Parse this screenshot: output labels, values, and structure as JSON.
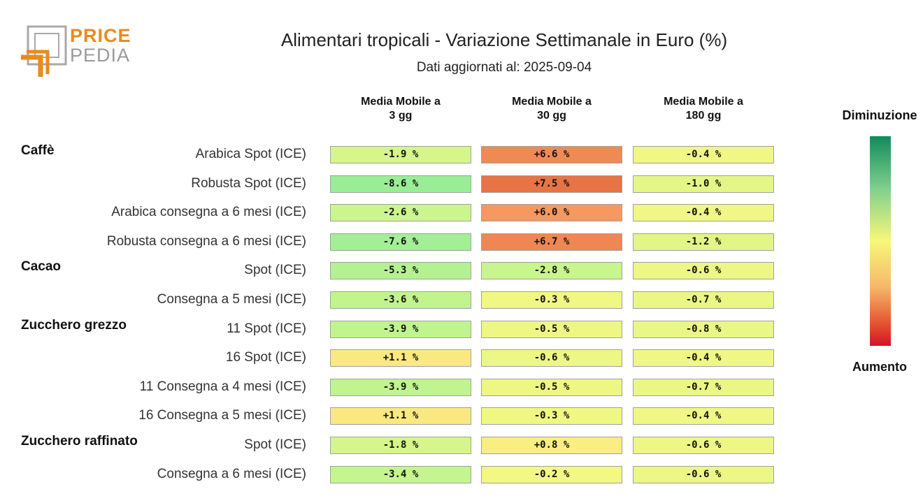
{
  "brand": {
    "logo_line1": "PRICE",
    "logo_line2": "PEDIA"
  },
  "title": "Alimentari tropicali - Variazione Settimanale in Euro (%)",
  "subtitle": "Dati aggiornati al: 2025-09-04",
  "legend": {
    "top_label": "Diminuzione",
    "bottom_label": "Aumento"
  },
  "colors": {
    "brand_orange": "#ea8a1e",
    "brand_gray": "#9a9a9a",
    "scale_green": "#128a5c",
    "scale_yellow": "#f7f77a",
    "scale_red": "#d4122a"
  },
  "chart_data": {
    "type": "heatmap",
    "title": "Alimentari tropicali - Variazione Settimanale in Euro (%)",
    "columns": [
      "Media Mobile a\n3 gg",
      "Media Mobile a\n30 gg",
      "Media Mobile a\n180 gg"
    ],
    "groups": [
      {
        "name": "Caffè",
        "rows": [
          {
            "label": "Arabica Spot (ICE)",
            "values": [
              "-1.9 %",
              "+6.6 %",
              "-0.4 %"
            ]
          },
          {
            "label": "Robusta Spot (ICE)",
            "values": [
              "-8.6 %",
              "+7.5 %",
              "-1.0 %"
            ]
          },
          {
            "label": "Arabica consegna a 6 mesi (ICE)",
            "values": [
              "-2.6 %",
              "+6.0 %",
              "-0.4 %"
            ]
          },
          {
            "label": "Robusta consegna a 6 mesi (ICE)",
            "values": [
              "-7.6 %",
              "+6.7 %",
              "-1.2 %"
            ]
          }
        ]
      },
      {
        "name": "Cacao",
        "rows": [
          {
            "label": "Spot (ICE)",
            "values": [
              "-5.3 %",
              "-2.8 %",
              "-0.6 %"
            ]
          },
          {
            "label": "Consegna a 5 mesi (ICE)",
            "values": [
              "-3.6 %",
              "-0.3 %",
              "-0.7 %"
            ]
          }
        ]
      },
      {
        "name": "Zucchero grezzo",
        "rows": [
          {
            "label": "11 Spot (ICE)",
            "values": [
              "-3.9 %",
              "-0.5 %",
              "-0.8 %"
            ]
          },
          {
            "label": "16 Spot (ICE)",
            "values": [
              "+1.1 %",
              "-0.6 %",
              "-0.4 %"
            ]
          },
          {
            "label": "11 Consegna a 4 mesi (ICE)",
            "values": [
              "-3.9 %",
              "-0.5 %",
              "-0.7 %"
            ]
          },
          {
            "label": "16 Consegna a 5 mesi (ICE)",
            "values": [
              "+1.1 %",
              "-0.3 %",
              "-0.4 %"
            ]
          }
        ]
      },
      {
        "name": "Zucchero raffinato",
        "rows": [
          {
            "label": "Spot (ICE)",
            "values": [
              "-1.8 %",
              "+0.8 %",
              "-0.6 %"
            ]
          },
          {
            "label": "Consegna a 6 mesi (ICE)",
            "values": [
              "-3.4 %",
              "-0.2 %",
              "-0.6 %"
            ]
          }
        ]
      }
    ]
  }
}
